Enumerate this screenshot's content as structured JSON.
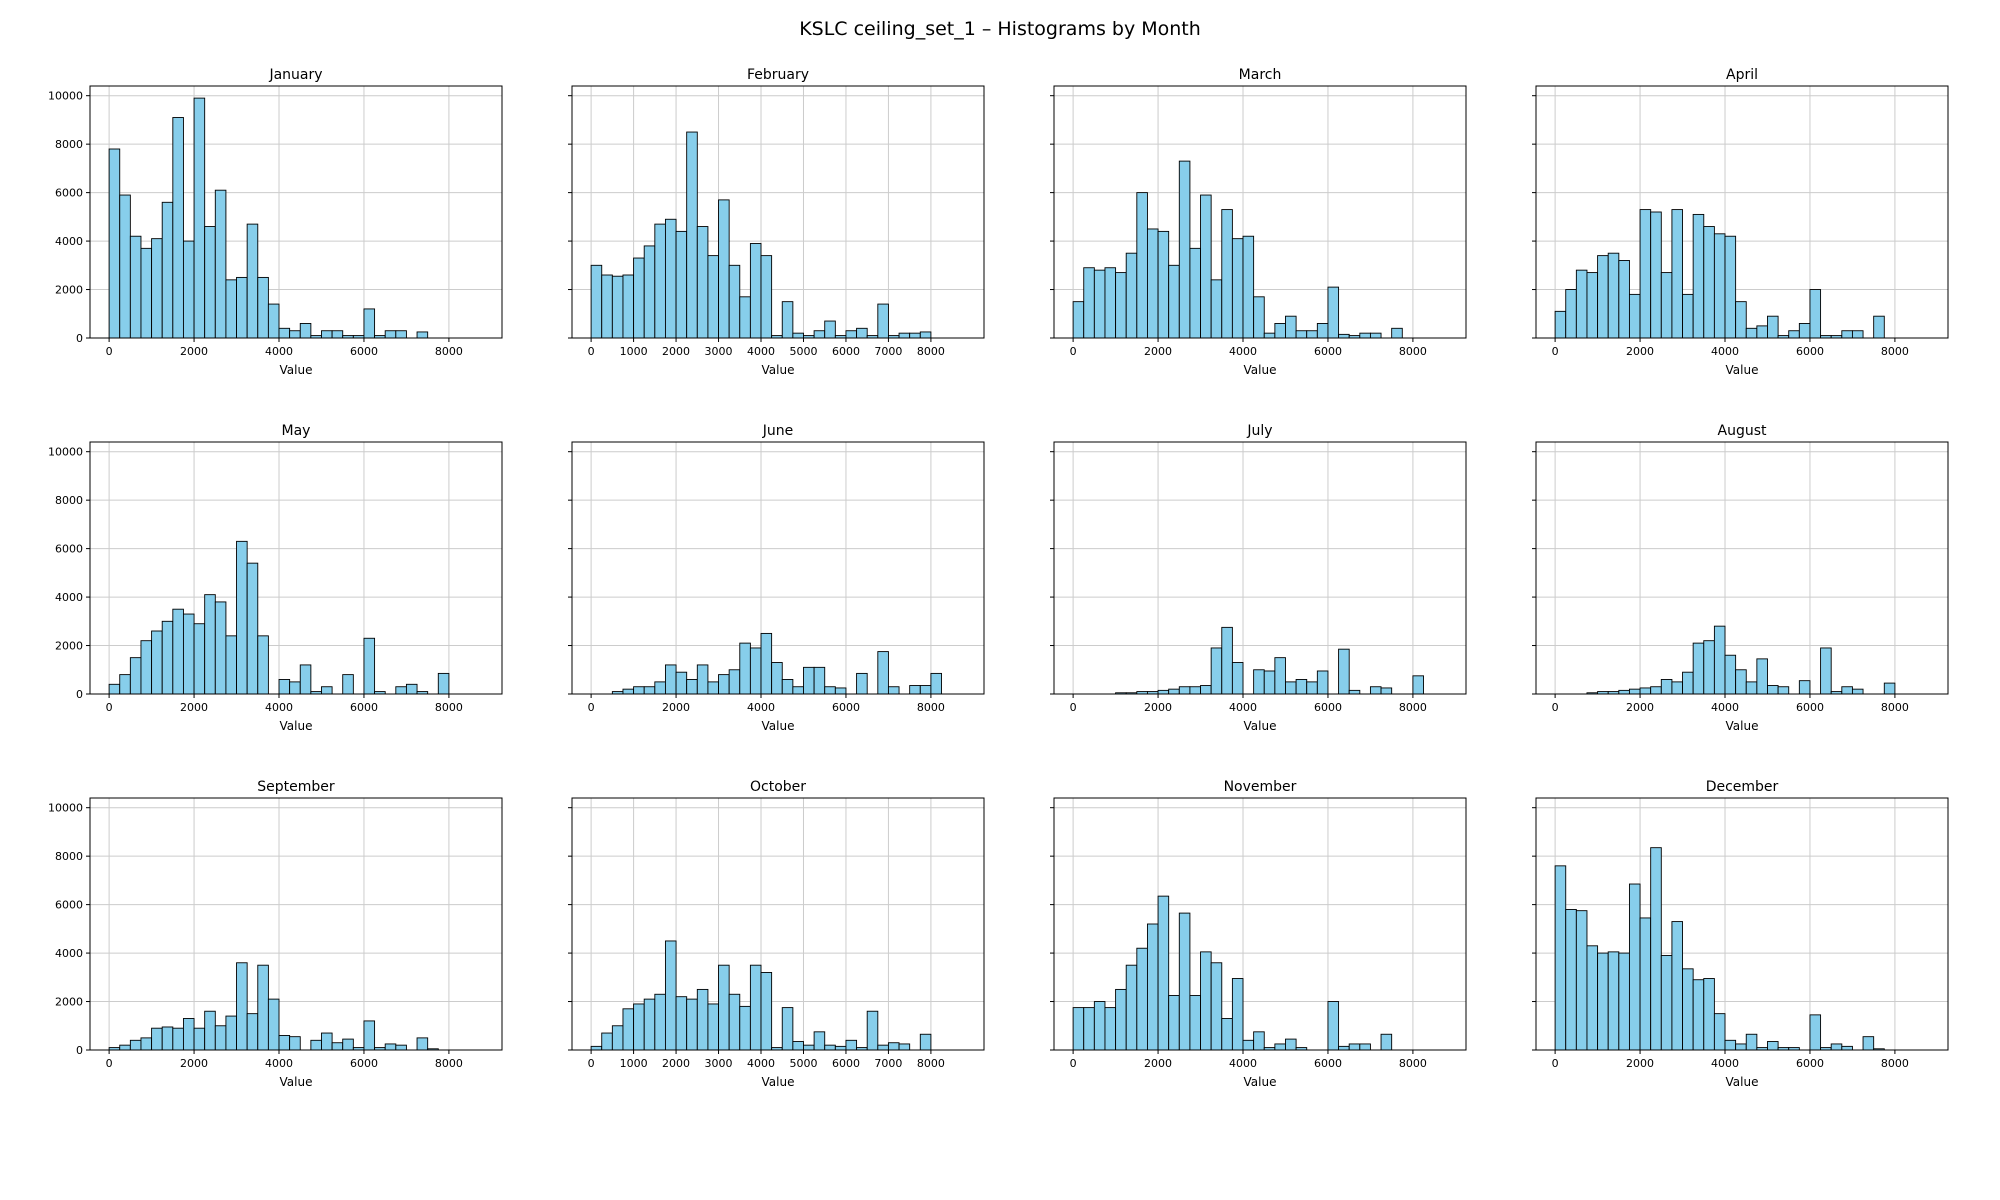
{
  "title": "KSLC ceiling_set_1 – Histograms by Month",
  "chart_config": {
    "type": "bar",
    "style": "histogram",
    "xlabel": "Value",
    "ylim": [
      0,
      10400
    ],
    "yticks": [
      0,
      2000,
      4000,
      6000,
      8000,
      10000
    ],
    "xlim": [
      -450,
      9250
    ],
    "bin_start": 0,
    "bin_width": 250,
    "bar_color": "#87CEEB",
    "edge_color": "#000000",
    "grid_color": "#cccccc",
    "grid": "on",
    "legend": "none",
    "y_tick_labels_on_first_column_only": true
  },
  "chart_data": [
    {
      "type": "bar",
      "title": "January",
      "xlabel": "Value",
      "xticks": [
        0,
        2000,
        4000,
        6000,
        8000
      ],
      "values": [
        7800,
        5900,
        4200,
        3700,
        4100,
        5600,
        9100,
        4000,
        9900,
        4600,
        6100,
        2400,
        2500,
        4700,
        2500,
        1400,
        400,
        300,
        600,
        100,
        300,
        300,
        100,
        100,
        1200,
        100,
        300,
        300,
        0,
        250
      ]
    },
    {
      "type": "bar",
      "title": "February",
      "xlabel": "Value",
      "xticks": [
        0,
        1000,
        2000,
        3000,
        4000,
        5000,
        6000,
        7000,
        8000
      ],
      "values": [
        3000,
        2600,
        2550,
        2600,
        3300,
        3800,
        4700,
        4900,
        4400,
        8500,
        4600,
        3400,
        5700,
        3000,
        1700,
        3900,
        3400,
        100,
        1500,
        200,
        100,
        300,
        700,
        100,
        300,
        400,
        100,
        1400,
        100,
        200,
        200,
        250
      ]
    },
    {
      "type": "bar",
      "title": "March",
      "xlabel": "Value",
      "xticks": [
        0,
        2000,
        4000,
        6000,
        8000
      ],
      "values": [
        1500,
        2900,
        2800,
        2900,
        2700,
        3500,
        6000,
        4500,
        4400,
        3000,
        7300,
        3700,
        5900,
        2400,
        5300,
        4100,
        4200,
        1700,
        200,
        600,
        900,
        300,
        300,
        600,
        2100,
        150,
        100,
        200,
        200,
        0,
        400
      ]
    },
    {
      "type": "bar",
      "title": "April",
      "xlabel": "Value",
      "xticks": [
        0,
        2000,
        4000,
        6000,
        8000
      ],
      "values": [
        1100,
        2000,
        2800,
        2700,
        3400,
        3500,
        3200,
        1800,
        5300,
        5200,
        2700,
        5300,
        1800,
        5100,
        4600,
        4300,
        4200,
        1500,
        400,
        500,
        900,
        100,
        300,
        600,
        2000,
        100,
        100,
        300,
        300,
        0,
        900
      ]
    },
    {
      "type": "bar",
      "title": "May",
      "xlabel": "Value",
      "xticks": [
        0,
        2000,
        4000,
        6000,
        8000
      ],
      "values": [
        400,
        800,
        1500,
        2200,
        2600,
        3000,
        3500,
        3300,
        2900,
        4100,
        3800,
        2400,
        6300,
        5400,
        2400,
        0,
        600,
        500,
        1200,
        100,
        300,
        0,
        800,
        0,
        2300,
        100,
        0,
        300,
        400,
        100,
        0,
        850
      ]
    },
    {
      "type": "bar",
      "title": "June",
      "xlabel": "Value",
      "xticks": [
        0,
        2000,
        4000,
        6000,
        8000
      ],
      "values": [
        0,
        0,
        100,
        200,
        300,
        300,
        500,
        1200,
        900,
        600,
        1200,
        500,
        800,
        1000,
        2100,
        1900,
        2500,
        1300,
        600,
        300,
        1100,
        1100,
        300,
        250,
        0,
        850,
        0,
        1750,
        300,
        0,
        350,
        350,
        850
      ]
    },
    {
      "type": "bar",
      "title": "July",
      "xlabel": "Value",
      "xticks": [
        0,
        2000,
        4000,
        6000,
        8000
      ],
      "values": [
        0,
        0,
        0,
        0,
        50,
        50,
        100,
        100,
        150,
        200,
        300,
        300,
        350,
        1900,
        2750,
        1300,
        0,
        1000,
        950,
        1500,
        500,
        600,
        500,
        950,
        0,
        1850,
        150,
        0,
        300,
        250,
        0,
        0,
        750
      ]
    },
    {
      "type": "bar",
      "title": "August",
      "xlabel": "Value",
      "xticks": [
        0,
        2000,
        4000,
        6000,
        8000
      ],
      "values": [
        0,
        0,
        0,
        50,
        100,
        100,
        150,
        200,
        250,
        300,
        600,
        500,
        900,
        2100,
        2200,
        2800,
        1600,
        1000,
        500,
        1450,
        350,
        300,
        0,
        550,
        0,
        1900,
        100,
        300,
        200,
        0,
        0,
        450
      ]
    },
    {
      "type": "bar",
      "title": "September",
      "xlabel": "Value",
      "xticks": [
        0,
        2000,
        4000,
        6000,
        8000
      ],
      "values": [
        100,
        200,
        400,
        500,
        900,
        950,
        900,
        1300,
        900,
        1600,
        1000,
        1400,
        3600,
        1500,
        3500,
        2100,
        600,
        550,
        0,
        400,
        700,
        300,
        450,
        100,
        1200,
        100,
        250,
        200,
        0,
        500,
        50
      ]
    },
    {
      "type": "bar",
      "title": "October",
      "xlabel": "Value",
      "xticks": [
        0,
        1000,
        2000,
        3000,
        4000,
        5000,
        6000,
        7000,
        8000
      ],
      "values": [
        150,
        700,
        1000,
        1700,
        1900,
        2100,
        2300,
        4500,
        2200,
        2100,
        2500,
        1900,
        3500,
        2300,
        1800,
        3500,
        3200,
        100,
        1750,
        350,
        200,
        750,
        200,
        150,
        400,
        100,
        1600,
        200,
        300,
        250,
        0,
        650
      ]
    },
    {
      "type": "bar",
      "title": "November",
      "xlabel": "Value",
      "xticks": [
        0,
        2000,
        4000,
        6000,
        8000
      ],
      "values": [
        1750,
        1750,
        2000,
        1750,
        2500,
        3500,
        4200,
        5200,
        6350,
        2250,
        5650,
        2250,
        4050,
        3600,
        1300,
        2950,
        400,
        750,
        100,
        250,
        450,
        100,
        0,
        0,
        2000,
        150,
        250,
        250,
        0,
        650
      ]
    },
    {
      "type": "bar",
      "title": "December",
      "xlabel": "Value",
      "xticks": [
        0,
        2000,
        4000,
        6000,
        8000
      ],
      "values": [
        7600,
        5800,
        5750,
        4300,
        4000,
        4050,
        4000,
        6850,
        5450,
        8350,
        3900,
        5300,
        3350,
        2900,
        2950,
        1500,
        400,
        250,
        650,
        100,
        350,
        100,
        100,
        0,
        1450,
        100,
        250,
        150,
        0,
        550,
        50
      ]
    }
  ]
}
